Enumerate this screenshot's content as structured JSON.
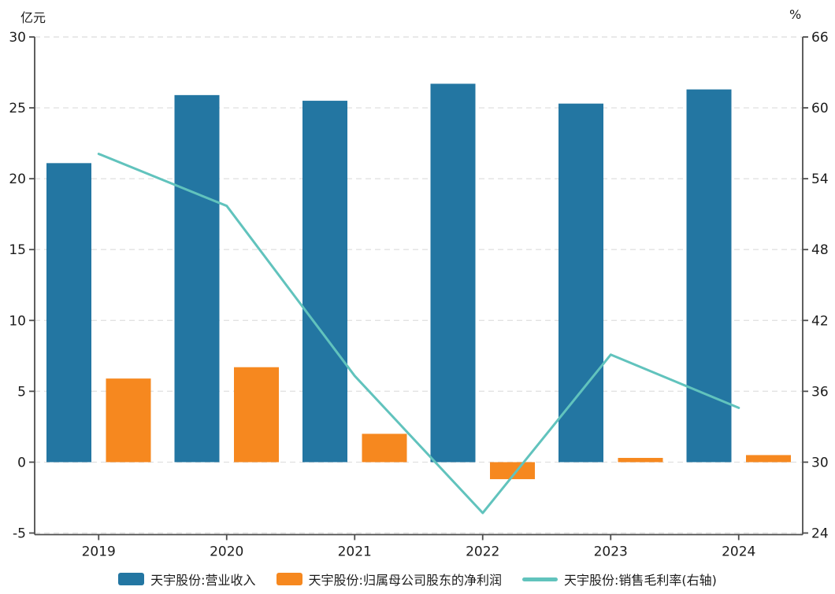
{
  "colors": {
    "revenue_bar": "#2376A2",
    "net_profit_bar": "#F6881F",
    "margin_line": "#61C3BD",
    "grid": "#E2E2E2",
    "axis": "#4D4D4D",
    "text": "#1C1C1C"
  },
  "chart_data": {
    "type": "bar",
    "subtype": "combo-bar-line-dual-axis",
    "categories": [
      "2019",
      "2020",
      "2021",
      "2022",
      "2023",
      "2024"
    ],
    "series": [
      {
        "name": "天宇股份:营业收入",
        "type": "bar",
        "axis": "left",
        "color": "#2376A2",
        "values": [
          21.1,
          25.9,
          25.5,
          26.7,
          25.3,
          26.3
        ]
      },
      {
        "name": "天宇股份:归属母公司股东的净利润",
        "type": "bar",
        "axis": "left",
        "color": "#F6881F",
        "values": [
          5.9,
          6.7,
          2.0,
          -1.2,
          0.3,
          0.5
        ]
      },
      {
        "name": "天宇股份:销售毛利率(右轴)",
        "type": "line",
        "axis": "right",
        "color": "#61C3BD",
        "values": [
          56.1,
          51.7,
          37.3,
          25.7,
          39.1,
          34.6
        ]
      }
    ],
    "left_axis": {
      "unit": "亿元",
      "min": -5,
      "max": 30,
      "step": 5,
      "ticks": [
        30,
        25,
        20,
        15,
        10,
        5,
        0,
        -5
      ]
    },
    "right_axis": {
      "unit": "%",
      "min": 24,
      "max": 66,
      "step": 6,
      "ticks": [
        66,
        60,
        54,
        48,
        42,
        36,
        30,
        24
      ]
    },
    "title": "",
    "grid": true,
    "legend_position": "bottom"
  }
}
